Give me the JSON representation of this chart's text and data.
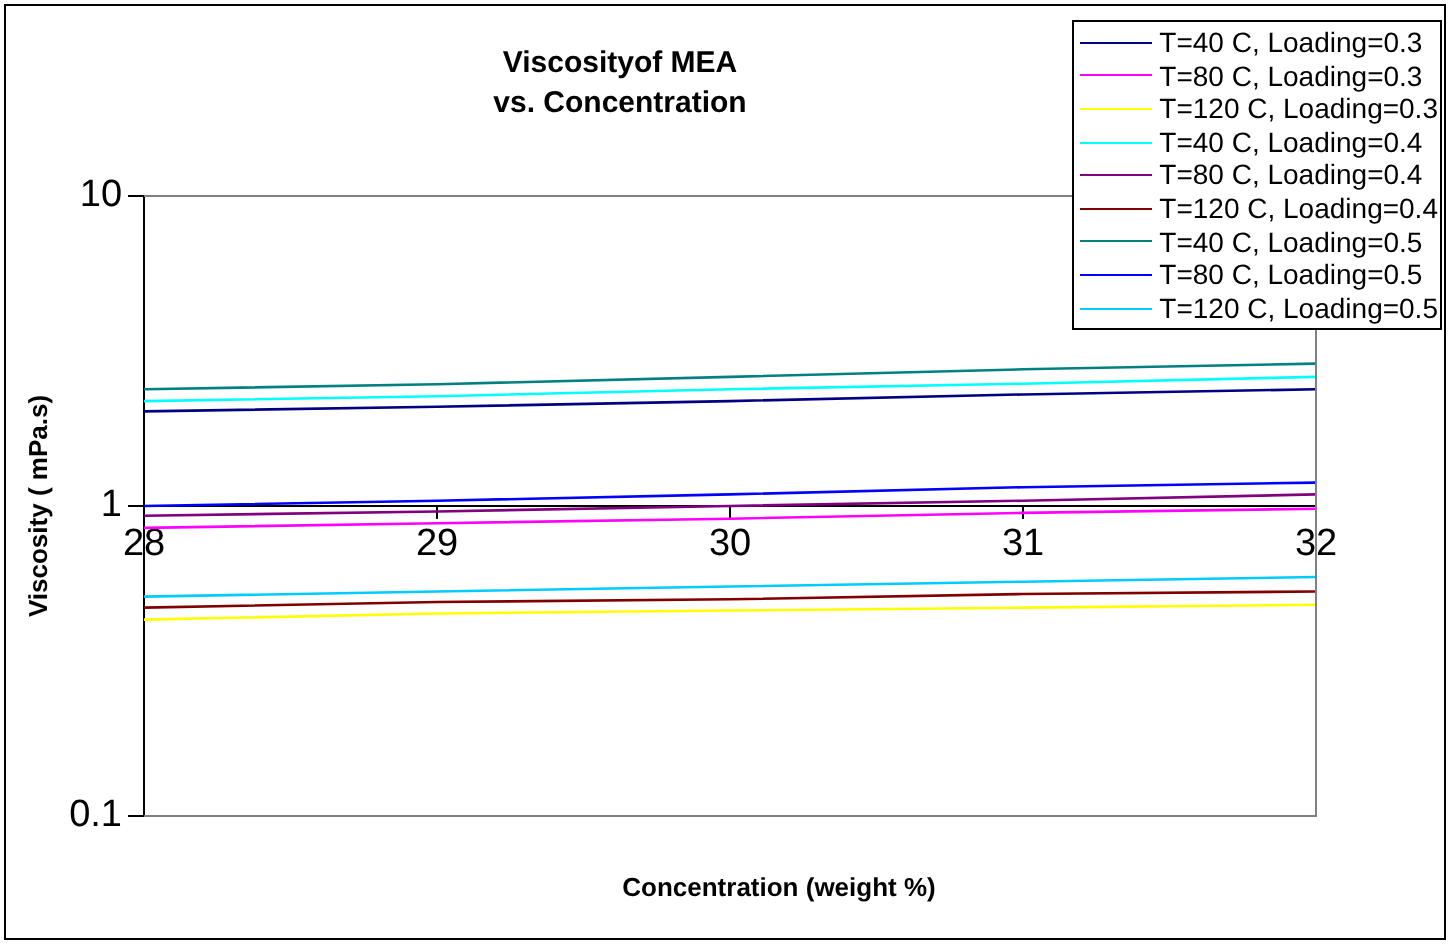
{
  "chart_data": {
    "type": "line",
    "title": "Viscosityof MEA\nvs. Concentration",
    "xlabel": "Concentration (weight %)",
    "ylabel": "Viscosity ( mPa.s)",
    "x": [
      28,
      29,
      30,
      31,
      32
    ],
    "xlim": [
      28,
      32
    ],
    "xticks": [
      28,
      29,
      30,
      31,
      32
    ],
    "ylim": [
      0.1,
      10
    ],
    "yticks": [
      0.1,
      1,
      10
    ],
    "log": true,
    "grid": false,
    "legend": "top right",
    "marker": "none",
    "line_style": "solid",
    "series": [
      {
        "name": "T=40 C, Loading=0.3",
        "color": "#000080",
        "values": [
          2.02,
          2.09,
          2.18,
          2.29,
          2.38
        ]
      },
      {
        "name": "T=80 C, Loading=0.3",
        "color": "#ff00ff",
        "values": [
          0.85,
          0.88,
          0.91,
          0.95,
          0.98
        ]
      },
      {
        "name": "T=120 C, Loading=0.3",
        "color": "#ffff00",
        "values": [
          0.43,
          0.45,
          0.46,
          0.47,
          0.48
        ]
      },
      {
        "name": "T=40 C, Loading=0.4",
        "color": "#00ffff",
        "values": [
          2.18,
          2.26,
          2.38,
          2.48,
          2.61
        ]
      },
      {
        "name": "T=80 C, Loading=0.4",
        "color": "#800080",
        "values": [
          0.93,
          0.96,
          1.0,
          1.04,
          1.09
        ]
      },
      {
        "name": "T=120 C, Loading=0.4",
        "color": "#800000",
        "values": [
          0.47,
          0.49,
          0.5,
          0.52,
          0.53
        ]
      },
      {
        "name": "T=40 C, Loading=0.5",
        "color": "#008080",
        "values": [
          2.38,
          2.47,
          2.61,
          2.76,
          2.88
        ]
      },
      {
        "name": "T=80 C, Loading=0.5",
        "color": "#0000ff",
        "values": [
          1.0,
          1.04,
          1.09,
          1.15,
          1.19
        ]
      },
      {
        "name": "T=120 C, Loading=0.5",
        "color": "#00ccff",
        "values": [
          0.51,
          0.53,
          0.55,
          0.57,
          0.59
        ]
      }
    ]
  }
}
